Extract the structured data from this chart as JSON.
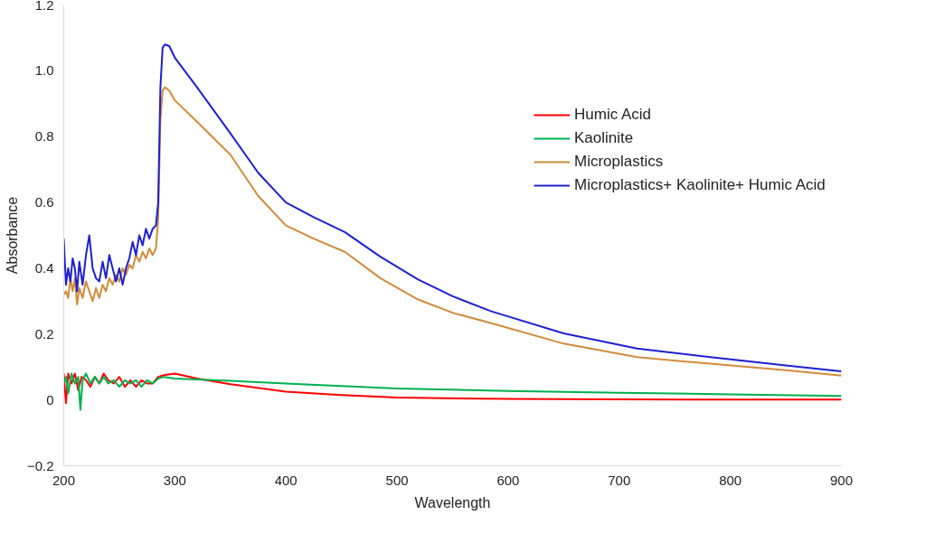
{
  "chart_data": {
    "type": "line",
    "xlabel": "Wavelength",
    "ylabel": "Absorbance",
    "xlim": [
      200,
      900
    ],
    "xticks": [
      200,
      300,
      400,
      500,
      600,
      700,
      800,
      900
    ],
    "ylim": [
      -0.2,
      1.2
    ],
    "yticks": [
      -0.2,
      0,
      0.2,
      0.4,
      0.6,
      0.8,
      {
        "value": 1,
        "label": "1.0"
      },
      1.2
    ],
    "legend": "right",
    "series": [
      {
        "name": "Humic Acid",
        "color": "#ff0000",
        "x": [
          200,
          202,
          204,
          207,
          210,
          213,
          216,
          220,
          224,
          228,
          232,
          236,
          240,
          245,
          250,
          255,
          260,
          265,
          270,
          275,
          280,
          285,
          290,
          300,
          320,
          350,
          400,
          450,
          500,
          600,
          700,
          800,
          900
        ],
        "values": [
          0.08,
          -0.01,
          0.08,
          0.05,
          0.08,
          0.03,
          0.07,
          0.06,
          0.04,
          0.07,
          0.05,
          0.08,
          0.06,
          0.05,
          0.07,
          0.04,
          0.06,
          0.04,
          0.06,
          0.05,
          0.05,
          0.07,
          0.075,
          0.08,
          0.065,
          0.048,
          0.025,
          0.015,
          0.007,
          0.003,
          0.002,
          0.001,
          0.001
        ]
      },
      {
        "name": "Kaolinite",
        "color": "#00b050",
        "x": [
          200,
          202,
          204,
          207,
          210,
          213,
          215,
          217,
          220,
          224,
          228,
          232,
          236,
          240,
          245,
          250,
          255,
          260,
          265,
          270,
          275,
          280,
          285,
          290,
          300,
          350,
          400,
          450,
          500,
          600,
          700,
          800,
          900
        ],
        "values": [
          0.05,
          0.07,
          0.02,
          0.08,
          0.05,
          0.07,
          -0.03,
          0.06,
          0.08,
          0.05,
          0.07,
          0.05,
          0.07,
          0.05,
          0.06,
          0.04,
          0.06,
          0.05,
          0.06,
          0.04,
          0.06,
          0.05,
          0.065,
          0.07,
          0.065,
          0.058,
          0.05,
          0.042,
          0.035,
          0.027,
          0.022,
          0.017,
          0.012
        ]
      },
      {
        "name": "Microplastics",
        "color": "#d08b3b",
        "x": [
          200,
          202,
          204,
          206,
          208,
          210,
          212,
          214,
          217,
          220,
          223,
          226,
          229,
          232,
          235,
          238,
          241,
          244,
          247,
          250,
          253,
          256,
          259,
          262,
          265,
          268,
          271,
          274,
          277,
          280,
          283,
          285,
          287,
          289,
          291,
          295,
          300,
          320,
          350,
          375,
          400,
          425,
          453,
          485,
          519,
          550,
          585,
          650,
          716,
          782,
          850,
          900
        ],
        "values": [
          0.32,
          0.33,
          0.31,
          0.37,
          0.33,
          0.37,
          0.29,
          0.34,
          0.31,
          0.36,
          0.33,
          0.3,
          0.34,
          0.31,
          0.35,
          0.33,
          0.37,
          0.35,
          0.38,
          0.36,
          0.4,
          0.38,
          0.41,
          0.4,
          0.44,
          0.42,
          0.45,
          0.43,
          0.46,
          0.44,
          0.46,
          0.55,
          0.85,
          0.94,
          0.95,
          0.94,
          0.91,
          0.845,
          0.745,
          0.62,
          0.53,
          0.49,
          0.45,
          0.37,
          0.305,
          0.265,
          0.233,
          0.171,
          0.13,
          0.11,
          0.09,
          0.074
        ]
      },
      {
        "name": "Microplastics+ Kaolinite+ Humic Acid",
        "color": "#1f1fd0",
        "x": [
          200,
          202,
          204,
          206,
          208,
          210,
          212,
          214,
          217,
          220,
          223,
          226,
          229,
          232,
          235,
          238,
          241,
          244,
          247,
          250,
          253,
          256,
          259,
          262,
          265,
          268,
          271,
          274,
          277,
          280,
          283,
          285,
          287,
          289,
          291,
          295,
          300,
          320,
          350,
          375,
          400,
          425,
          453,
          485,
          519,
          550,
          585,
          650,
          716,
          782,
          850,
          900
        ],
        "values": [
          0.49,
          0.35,
          0.4,
          0.36,
          0.43,
          0.4,
          0.33,
          0.42,
          0.35,
          0.44,
          0.5,
          0.4,
          0.37,
          0.36,
          0.42,
          0.37,
          0.44,
          0.4,
          0.36,
          0.4,
          0.35,
          0.4,
          0.43,
          0.48,
          0.44,
          0.5,
          0.47,
          0.52,
          0.49,
          0.52,
          0.53,
          0.6,
          0.95,
          1.07,
          1.08,
          1.075,
          1.04,
          0.95,
          0.81,
          0.69,
          0.6,
          0.555,
          0.51,
          0.435,
          0.366,
          0.315,
          0.269,
          0.202,
          0.156,
          0.13,
          0.105,
          0.087
        ]
      }
    ]
  }
}
